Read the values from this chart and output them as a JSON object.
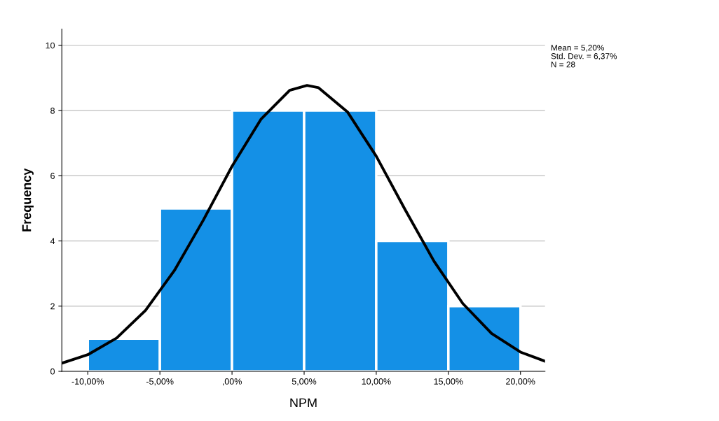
{
  "chart_data": {
    "type": "histogram",
    "xlabel": "NPM",
    "ylabel": "Frequency",
    "bins": [
      -10,
      -5,
      0,
      5,
      10,
      15,
      20
    ],
    "values": [
      1,
      5,
      8,
      8,
      4,
      2
    ],
    "color": "#1490e6",
    "series": [
      {
        "type": "line",
        "color": "#000000",
        "x": [
          -11.8,
          -10,
          -8,
          -6,
          -4,
          -2,
          0,
          2,
          4,
          5.2,
          6,
          8,
          10,
          12,
          14,
          16,
          18,
          20,
          21.7
        ],
        "values": [
          0.25,
          0.51,
          1.02,
          1.87,
          3.09,
          4.63,
          6.29,
          7.73,
          8.62,
          8.77,
          8.7,
          7.96,
          6.6,
          4.96,
          3.38,
          2.08,
          1.16,
          0.59,
          0.31
        ]
      }
    ],
    "xlim": [
      -11.8,
      21.7
    ],
    "xticks": [
      {
        "value": -10,
        "label": "-10,00%"
      },
      {
        "value": -5,
        "label": "-5,00%"
      },
      {
        "value": 0,
        "label": ",00%"
      },
      {
        "value": 5,
        "label": "5,00%"
      },
      {
        "value": 10,
        "label": "10,00%"
      },
      {
        "value": 15,
        "label": "15,00%"
      },
      {
        "value": 20,
        "label": "20,00%"
      }
    ],
    "ylim": [
      0,
      10.5
    ],
    "yticks": [
      0,
      2,
      4,
      6,
      8,
      10
    ],
    "grid": "y",
    "annotations": [
      "Mean = 5,20%",
      "Std. Dev. = 6,37%",
      "N = 28"
    ]
  }
}
